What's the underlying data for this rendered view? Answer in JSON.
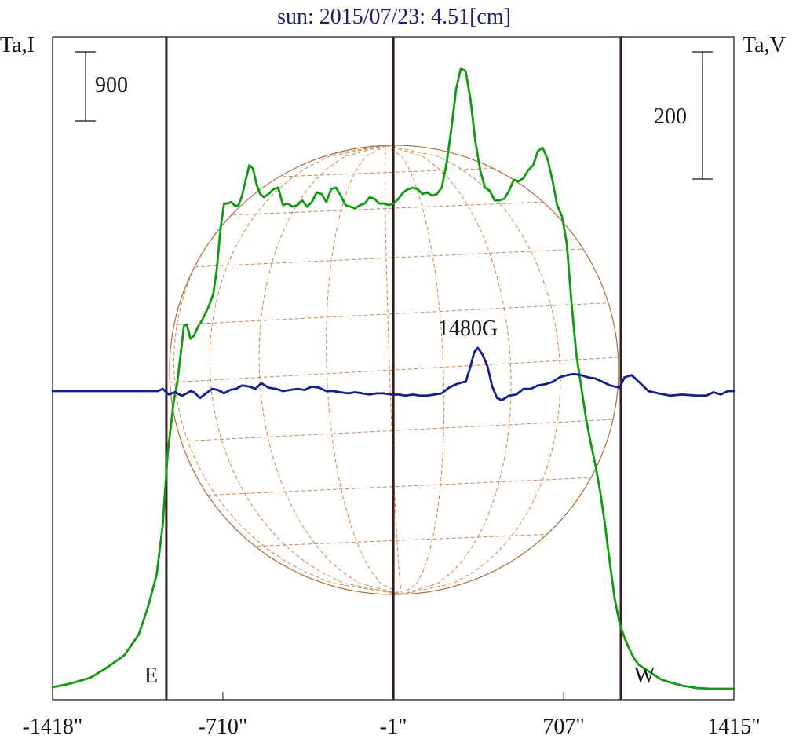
{
  "title": "sun: 2015/07/23: 4.51[cm]",
  "left_axis_label": "Ta,I",
  "right_axis_label": "Ta,V",
  "scale_bars": [
    {
      "name": "intensity-scale",
      "label": "900",
      "value": 900
    },
    {
      "name": "polarization-scale",
      "label": "200",
      "value": 200
    }
  ],
  "annotations": [
    {
      "name": "east-limb-label",
      "text": "E"
    },
    {
      "name": "west-limb-label",
      "text": "W"
    },
    {
      "name": "peak-field-label",
      "text": "1480G"
    }
  ],
  "colors": {
    "title": "#1f1f6e",
    "intensity": "#119a11",
    "polarization": "#111f8c",
    "vertical_lines": "#3b1f1f",
    "disk": "#b06a39",
    "grid": "#c88650",
    "axes": "#111111"
  },
  "chart_data": {
    "type": "line",
    "title": "sun: 2015/07/23: 4.51[cm]",
    "xlabel": "",
    "ylabel": "Ta,I",
    "y2label": "Ta,V",
    "xlim": [
      -1418,
      1415
    ],
    "x_ticks": [
      {
        "value": -1418,
        "label": "-1418\""
      },
      {
        "value": -710,
        "label": "-710\""
      },
      {
        "value": -1,
        "label": "-1\""
      },
      {
        "value": 707,
        "label": "707\""
      },
      {
        "value": 1415,
        "label": "1415\""
      }
    ],
    "vertical_lines": [
      -945,
      -1,
      945
    ],
    "disk_radius": 945,
    "series": [
      {
        "name": "Ta,I",
        "color": "#119a11",
        "x": [
          -1418,
          -1350,
          -1260,
          -1200,
          -1120,
          -1060,
          -1020,
          -985,
          -960,
          -940,
          -915,
          -900,
          -885,
          -872,
          -860,
          -845,
          -830,
          -812,
          -795,
          -770,
          -750,
          -735,
          -720,
          -705,
          -690,
          -675,
          -660,
          -645,
          -630,
          -615,
          -600,
          -585,
          -570,
          -555,
          -540,
          -520,
          -500,
          -480,
          -460,
          -440,
          -420,
          -400,
          -380,
          -360,
          -340,
          -320,
          -300,
          -280,
          -260,
          -240,
          -220,
          -200,
          -180,
          -160,
          -140,
          -120,
          -100,
          -80,
          -60,
          -40,
          -20,
          0,
          20,
          40,
          60,
          80,
          100,
          120,
          140,
          160,
          180,
          200,
          220,
          240,
          260,
          280,
          300,
          320,
          340,
          360,
          380,
          400,
          420,
          440,
          460,
          480,
          500,
          520,
          540,
          560,
          580,
          600,
          620,
          640,
          660,
          680,
          700,
          720,
          740,
          760,
          780,
          800,
          820,
          840,
          860,
          880,
          900,
          920,
          940,
          960,
          980,
          1000,
          1020,
          1050,
          1080,
          1110,
          1150,
          1200,
          1260,
          1320,
          1380,
          1415
        ],
        "values": [
          10,
          30,
          70,
          125,
          210,
          340,
          520,
          720,
          1030,
          1470,
          1800,
          1920,
          2110,
          2280,
          2290,
          2200,
          2220,
          2280,
          2320,
          2400,
          2480,
          2640,
          2890,
          3050,
          3050,
          3060,
          3035,
          3040,
          3100,
          3200,
          3290,
          3270,
          3170,
          3110,
          3090,
          3110,
          3140,
          3150,
          3040,
          3050,
          3030,
          3040,
          3070,
          3030,
          3060,
          3120,
          3110,
          3060,
          3140,
          3150,
          3100,
          3040,
          3030,
          3020,
          3040,
          3050,
          3090,
          3080,
          3050,
          3050,
          3040,
          3050,
          3080,
          3120,
          3140,
          3150,
          3140,
          3110,
          3120,
          3100,
          3110,
          3150,
          3300,
          3520,
          3770,
          3900,
          3880,
          3700,
          3440,
          3260,
          3150,
          3130,
          3070,
          3070,
          3080,
          3130,
          3200,
          3190,
          3210,
          3260,
          3290,
          3380,
          3400,
          3330,
          3200,
          3040,
          2970,
          2800,
          2420,
          2100,
          1900,
          1700,
          1540,
          1400,
          1230,
          1020,
          780,
          560,
          410,
          320,
          250,
          190,
          150,
          120,
          90,
          60,
          40,
          20,
          5,
          0,
          0,
          0
        ]
      },
      {
        "name": "Ta,V",
        "color": "#111f8c",
        "x": [
          -1418,
          -1300,
          -1200,
          -1100,
          -980,
          -960,
          -950,
          -935,
          -910,
          -880,
          -860,
          -845,
          -830,
          -805,
          -780,
          -755,
          -730,
          -705,
          -680,
          -655,
          -630,
          -600,
          -575,
          -550,
          -520,
          -490,
          -460,
          -430,
          -400,
          -370,
          -340,
          -310,
          -280,
          -250,
          -220,
          -190,
          -160,
          -130,
          -100,
          -70,
          -40,
          -10,
          20,
          50,
          80,
          110,
          140,
          170,
          200,
          230,
          260,
          290,
          300,
          310,
          320,
          335,
          350,
          370,
          390,
          410,
          430,
          450,
          480,
          510,
          540,
          570,
          600,
          630,
          660,
          690,
          720,
          750,
          780,
          810,
          840,
          870,
          900,
          920,
          940,
          960,
          990,
          1020,
          1060,
          1100,
          1150,
          1200,
          1260,
          1300,
          1330,
          1360,
          1390,
          1415
        ],
        "values": [
          0,
          0,
          0,
          0,
          0,
          10,
          0,
          -15,
          -5,
          -20,
          -10,
          0,
          -5,
          -30,
          -10,
          10,
          5,
          -10,
          5,
          10,
          25,
          20,
          10,
          35,
          15,
          10,
          0,
          5,
          10,
          5,
          20,
          15,
          0,
          0,
          -5,
          -10,
          -5,
          -10,
          -15,
          -10,
          -10,
          -15,
          -15,
          -20,
          -15,
          -20,
          -20,
          -15,
          -10,
          15,
          30,
          40,
          40,
          75,
          110,
          170,
          190,
          160,
          110,
          20,
          -30,
          -40,
          -20,
          -15,
          10,
          10,
          25,
          30,
          40,
          60,
          70,
          75,
          70,
          60,
          55,
          40,
          25,
          20,
          15,
          60,
          70,
          40,
          0,
          -10,
          -20,
          -15,
          -20,
          -20,
          -5,
          -15,
          0,
          0
        ]
      }
    ]
  }
}
